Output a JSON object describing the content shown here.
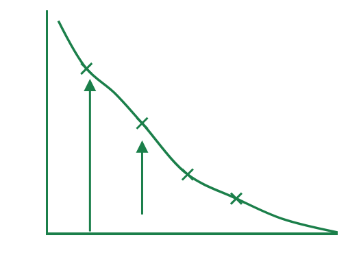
{
  "chart_data": {
    "type": "line",
    "color": "#1b7f4a",
    "xlim": [
      0,
      100
    ],
    "ylim": [
      0,
      105
    ],
    "grid": false,
    "tick_labels": false,
    "series": [
      {
        "type": "line",
        "line_style": "solid",
        "color": "#1b7f4a",
        "x": [
          3.6,
          13.3,
          22.9,
          32.5,
          48.2,
          65,
          80.7,
          100
        ],
        "values": [
          100,
          77.4,
          66,
          51.6,
          27.4,
          16,
          6.5,
          0
        ]
      },
      {
        "type": "scatter",
        "marker": "x",
        "color": "#1b7f4a",
        "x": [
          13.3,
          32.5,
          48.2,
          65
        ],
        "values": [
          77.4,
          51.6,
          27.4,
          16
        ]
      }
    ],
    "arrows": [
      {
        "x": 14.5,
        "y0": 0,
        "y1": 72.6
      },
      {
        "x": 32.5,
        "y0": 8,
        "y1": 43.5
      }
    ]
  }
}
